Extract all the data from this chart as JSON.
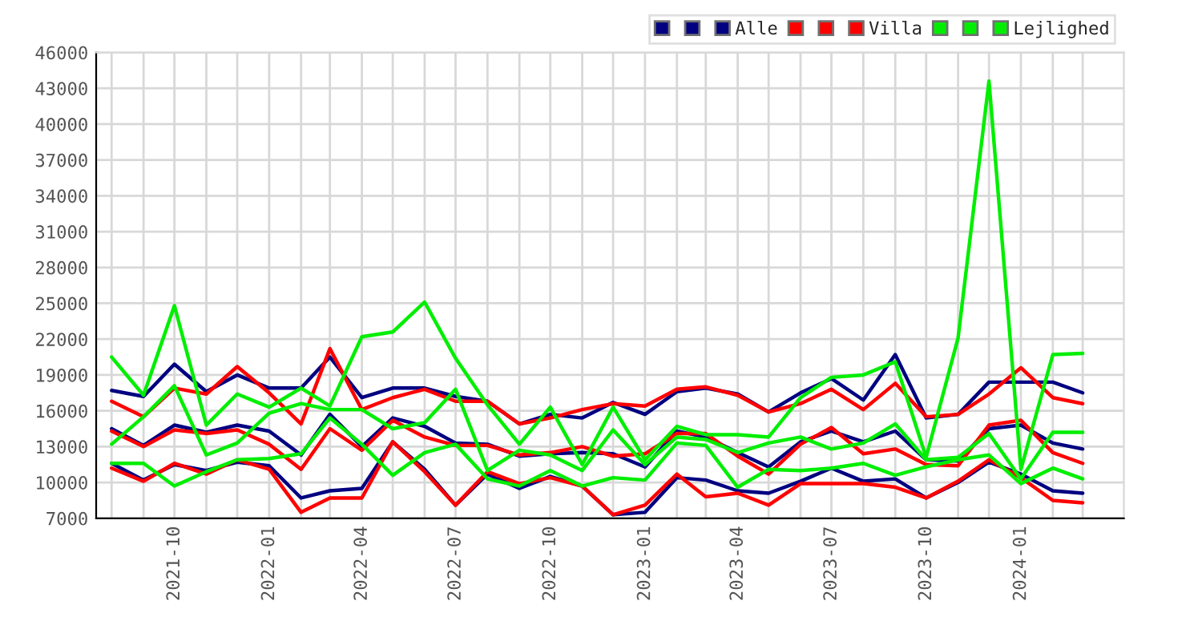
{
  "chart_data": {
    "type": "line",
    "x": [
      "2021-08",
      "2021-09",
      "2021-10",
      "2021-11",
      "2021-12",
      "2022-01",
      "2022-02",
      "2022-03",
      "2022-04",
      "2022-05",
      "2022-06",
      "2022-07",
      "2022-08",
      "2022-09",
      "2022-10",
      "2022-11",
      "2022-12",
      "2023-01",
      "2023-02",
      "2023-03",
      "2023-04",
      "2023-05",
      "2023-06",
      "2023-07",
      "2023-08",
      "2023-09",
      "2023-10",
      "2023-11",
      "2023-12",
      "2024-01",
      "2024-02",
      "2024-03"
    ],
    "series": [
      {
        "color": "#000080",
        "values": [
          17700,
          17200,
          19900,
          17600,
          19000,
          17900,
          17900,
          20500,
          17100,
          17900,
          17900,
          17200,
          16800,
          14900,
          15700,
          15400,
          16700,
          15700,
          17600,
          17900,
          17400,
          15900,
          17500,
          18700,
          16900,
          20700,
          15400,
          15700,
          18400,
          18400,
          18400,
          17500
        ]
      },
      {
        "color": "#000080",
        "values": [
          14500,
          13100,
          14800,
          14200,
          14800,
          14300,
          12300,
          15700,
          13000,
          15400,
          14700,
          13300,
          13200,
          12200,
          12400,
          12500,
          12400,
          11300,
          14300,
          13800,
          12500,
          11300,
          13400,
          14300,
          13400,
          14300,
          11900,
          11800,
          14500,
          14800,
          13300,
          12800
        ]
      },
      {
        "name": "Alle",
        "color": "#000080",
        "values": [
          11600,
          10200,
          11500,
          11000,
          11700,
          11400,
          8700,
          9300,
          9500,
          13400,
          11100,
          8100,
          10700,
          9500,
          10500,
          9700,
          7300,
          7500,
          10400,
          10200,
          9300,
          9100,
          10100,
          11200,
          10100,
          10300,
          8700,
          10000,
          11700,
          10700,
          9300,
          9100
        ]
      },
      {
        "color": "#ff0000",
        "values": [
          16800,
          15500,
          17900,
          17400,
          19700,
          17500,
          14900,
          21200,
          16100,
          17100,
          17800,
          16800,
          16800,
          14900,
          15400,
          16100,
          16600,
          16400,
          17800,
          18000,
          17300,
          15900,
          16600,
          17800,
          16100,
          18300,
          15500,
          15700,
          17400,
          19600,
          17100,
          16600
        ]
      },
      {
        "color": "#ff0000",
        "values": [
          14300,
          13000,
          14400,
          14100,
          14400,
          13200,
          11100,
          14500,
          12700,
          15200,
          13800,
          13100,
          13100,
          12300,
          12500,
          13000,
          12200,
          12400,
          14100,
          14100,
          12200,
          10700,
          13200,
          14600,
          12400,
          12800,
          11500,
          11400,
          14800,
          15200,
          12500,
          11600
        ]
      },
      {
        "name": "Villa",
        "color": "#ff0000",
        "values": [
          11200,
          10100,
          11600,
          10700,
          11900,
          11100,
          7500,
          8700,
          8700,
          13400,
          10900,
          8100,
          10900,
          9900,
          10400,
          9700,
          7300,
          8100,
          10700,
          8800,
          9100,
          8100,
          9900,
          9900,
          9900,
          9600,
          8700,
          10100,
          11900,
          10400,
          8500,
          8300
        ]
      },
      {
        "color": "#00ee00",
        "values": [
          20500,
          17300,
          24800,
          14800,
          17400,
          16300,
          17900,
          16400,
          22200,
          22600,
          25100,
          20400,
          16500,
          13200,
          16300,
          11500,
          16300,
          11900,
          14700,
          14000,
          14000,
          13800,
          17100,
          18800,
          19000,
          20100,
          12100,
          22100,
          43600,
          11100,
          20700,
          20800
        ]
      },
      {
        "color": "#00ee00",
        "values": [
          13200,
          15500,
          18100,
          12300,
          13300,
          15800,
          16600,
          16100,
          16100,
          14500,
          15000,
          17800,
          11000,
          12700,
          12300,
          11000,
          14400,
          11500,
          13800,
          13600,
          12500,
          13300,
          13800,
          12800,
          13300,
          14900,
          11900,
          12100,
          14100,
          10300,
          14200,
          14200
        ]
      },
      {
        "name": "Lejlighed",
        "color": "#00ee00",
        "values": [
          11600,
          11600,
          9700,
          10900,
          11900,
          12000,
          12400,
          15400,
          13200,
          10600,
          12500,
          13200,
          10300,
          9700,
          11000,
          9700,
          10400,
          10200,
          13300,
          13100,
          9600,
          11100,
          11000,
          11200,
          11600,
          10600,
          11300,
          11900,
          12300,
          9900,
          11200,
          10300
        ]
      }
    ],
    "xlim": [
      "2021-07-17",
      "2024-04-10"
    ],
    "xticks": [
      {
        "value": "2021-08",
        "label": null
      },
      {
        "value": "2021-09",
        "label": null
      },
      {
        "value": "2021-10",
        "label": "2021-10"
      },
      {
        "value": "2021-11",
        "label": null
      },
      {
        "value": "2021-12",
        "label": null
      },
      {
        "value": "2022-01",
        "label": "2022-01"
      },
      {
        "value": "2022-02",
        "label": null
      },
      {
        "value": "2022-03",
        "label": null
      },
      {
        "value": "2022-04",
        "label": "2022-04"
      },
      {
        "value": "2022-05",
        "label": null
      },
      {
        "value": "2022-06",
        "label": null
      },
      {
        "value": "2022-07",
        "label": "2022-07"
      },
      {
        "value": "2022-08",
        "label": null
      },
      {
        "value": "2022-09",
        "label": null
      },
      {
        "value": "2022-10",
        "label": "2022-10"
      },
      {
        "value": "2022-11",
        "label": null
      },
      {
        "value": "2022-12",
        "label": null
      },
      {
        "value": "2023-01",
        "label": "2023-01"
      },
      {
        "value": "2023-02",
        "label": null
      },
      {
        "value": "2023-03",
        "label": null
      },
      {
        "value": "2023-04",
        "label": "2023-04"
      },
      {
        "value": "2023-05",
        "label": null
      },
      {
        "value": "2023-06",
        "label": null
      },
      {
        "value": "2023-07",
        "label": "2023-07"
      },
      {
        "value": "2023-08",
        "label": null
      },
      {
        "value": "2023-09",
        "label": null
      },
      {
        "value": "2023-10",
        "label": "2023-10"
      },
      {
        "value": "2023-11",
        "label": null
      },
      {
        "value": "2023-12",
        "label": null
      },
      {
        "value": "2024-01",
        "label": "2024-01"
      },
      {
        "value": "2024-02",
        "label": null
      },
      {
        "value": "2024-03",
        "label": null
      }
    ],
    "ylim": [
      7000,
      46000
    ],
    "yticks": [
      7000,
      10000,
      13000,
      16000,
      19000,
      22000,
      25000,
      28000,
      31000,
      34000,
      37000,
      40000,
      43000,
      46000
    ],
    "grid": true,
    "legend": "top right",
    "marker": "none",
    "line_style": "solid"
  }
}
